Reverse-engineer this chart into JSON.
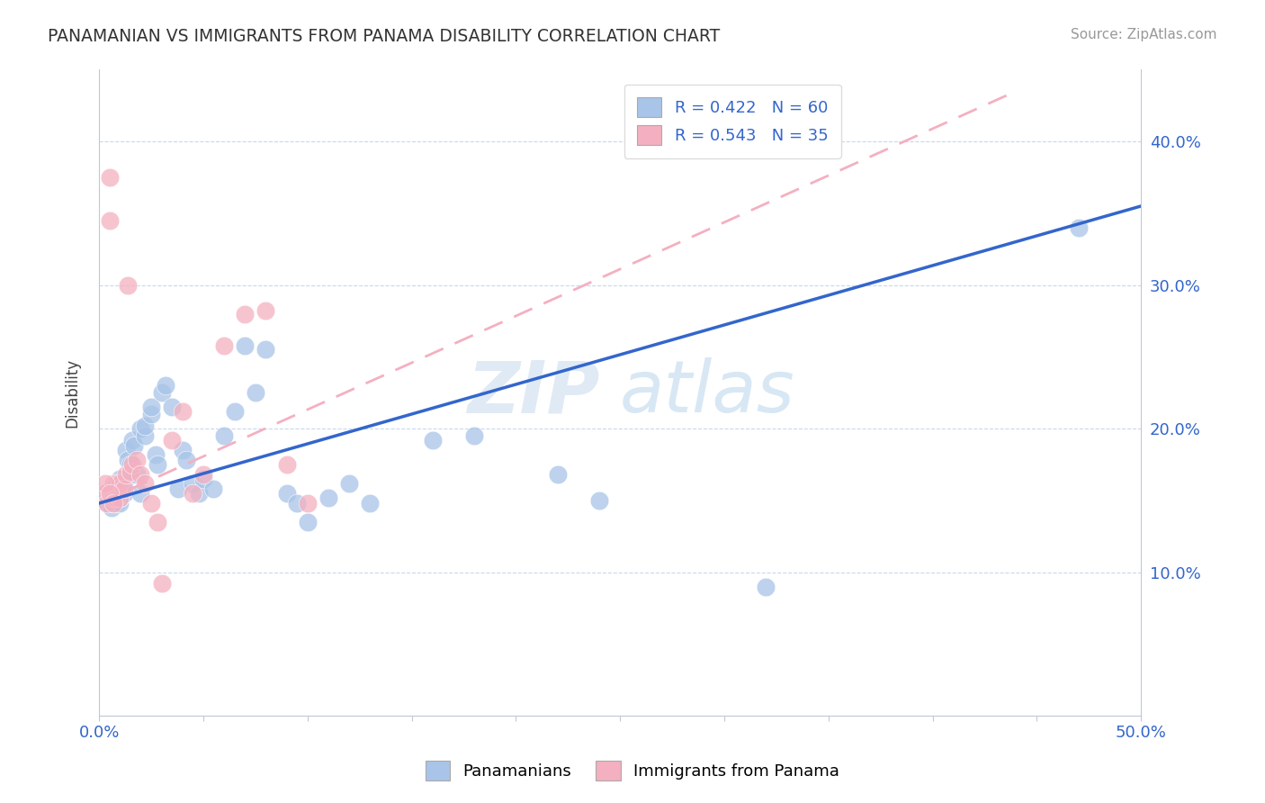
{
  "title": "PANAMANIAN VS IMMIGRANTS FROM PANAMA DISABILITY CORRELATION CHART",
  "source": "Source: ZipAtlas.com",
  "ylabel": "Disability",
  "xlim": [
    0.0,
    0.5
  ],
  "ylim": [
    0.0,
    0.45
  ],
  "legend_r1": "R = 0.422",
  "legend_n1": "N = 60",
  "legend_r2": "R = 0.543",
  "legend_n2": "N = 35",
  "blue_color": "#a8c4e8",
  "pink_color": "#f4b0c0",
  "line_blue": "#3366cc",
  "line_pink": "#e06080",
  "blue_line_x0": 0.0,
  "blue_line_y0": 0.148,
  "blue_line_x1": 0.5,
  "blue_line_y1": 0.355,
  "pink_line_x0": 0.0,
  "pink_line_y0": 0.148,
  "pink_line_x1": 0.44,
  "pink_line_y1": 0.435,
  "blue_x": [
    0.003,
    0.003,
    0.004,
    0.005,
    0.005,
    0.006,
    0.006,
    0.007,
    0.007,
    0.008,
    0.008,
    0.009,
    0.01,
    0.01,
    0.01,
    0.01,
    0.012,
    0.012,
    0.013,
    0.014,
    0.015,
    0.015,
    0.016,
    0.017,
    0.018,
    0.02,
    0.02,
    0.022,
    0.022,
    0.025,
    0.025,
    0.027,
    0.028,
    0.03,
    0.032,
    0.035,
    0.038,
    0.04,
    0.042,
    0.045,
    0.048,
    0.05,
    0.055,
    0.06,
    0.065,
    0.07,
    0.075,
    0.08,
    0.09,
    0.095,
    0.1,
    0.11,
    0.12,
    0.13,
    0.16,
    0.18,
    0.22,
    0.24,
    0.32,
    0.47
  ],
  "blue_y": [
    0.155,
    0.15,
    0.148,
    0.15,
    0.155,
    0.145,
    0.152,
    0.148,
    0.158,
    0.148,
    0.155,
    0.155,
    0.148,
    0.152,
    0.158,
    0.165,
    0.155,
    0.162,
    0.185,
    0.178,
    0.168,
    0.175,
    0.192,
    0.188,
    0.168,
    0.155,
    0.2,
    0.195,
    0.202,
    0.21,
    0.215,
    0.182,
    0.175,
    0.225,
    0.23,
    0.215,
    0.158,
    0.185,
    0.178,
    0.162,
    0.155,
    0.165,
    0.158,
    0.195,
    0.212,
    0.258,
    0.225,
    0.255,
    0.155,
    0.148,
    0.135,
    0.152,
    0.162,
    0.148,
    0.192,
    0.195,
    0.168,
    0.15,
    0.09,
    0.34
  ],
  "pink_x": [
    0.003,
    0.004,
    0.005,
    0.005,
    0.006,
    0.007,
    0.007,
    0.008,
    0.008,
    0.009,
    0.01,
    0.01,
    0.012,
    0.013,
    0.014,
    0.015,
    0.016,
    0.018,
    0.02,
    0.022,
    0.025,
    0.028,
    0.03,
    0.035,
    0.04,
    0.045,
    0.05,
    0.06,
    0.07,
    0.08,
    0.09,
    0.1,
    0.003,
    0.005,
    0.007
  ],
  "pink_y": [
    0.155,
    0.148,
    0.375,
    0.345,
    0.155,
    0.152,
    0.162,
    0.152,
    0.162,
    0.158,
    0.152,
    0.162,
    0.158,
    0.168,
    0.3,
    0.17,
    0.175,
    0.178,
    0.168,
    0.162,
    0.148,
    0.135,
    0.092,
    0.192,
    0.212,
    0.155,
    0.168,
    0.258,
    0.28,
    0.282,
    0.175,
    0.148,
    0.162,
    0.155,
    0.148
  ]
}
